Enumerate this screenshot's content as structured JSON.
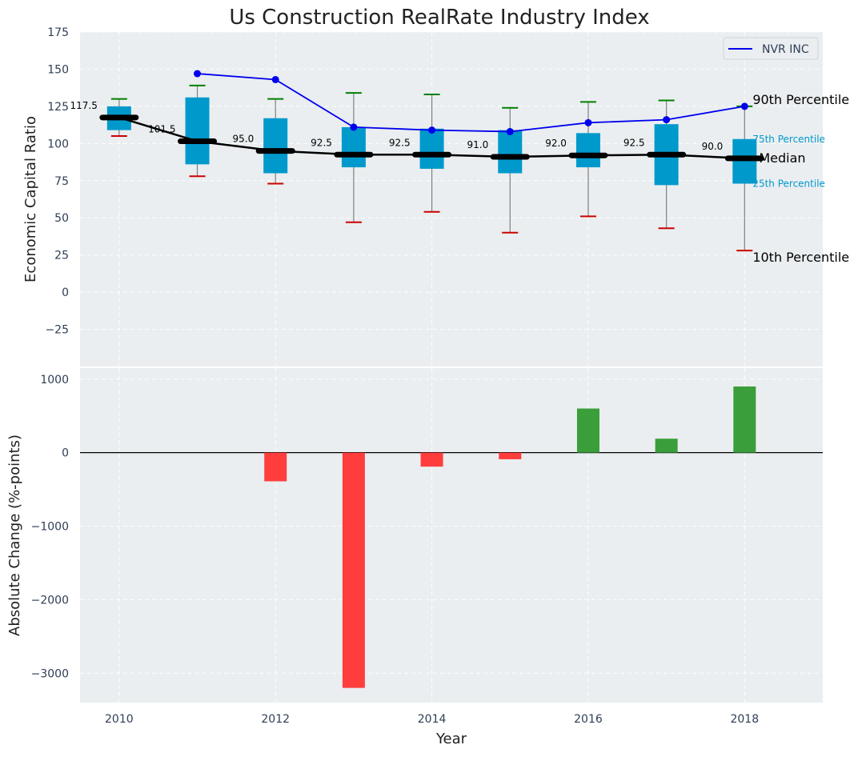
{
  "chart_data": [
    {
      "type": "box",
      "title": "Us Construction RealRate Industry Index",
      "ylabel": "Economic Capital Ratio",
      "ylim": [
        -50,
        175
      ],
      "yticks": [
        -25,
        0,
        25,
        50,
        75,
        100,
        125,
        150,
        175
      ],
      "xlim": [
        2009.5,
        2019.0
      ],
      "grid": true,
      "legend_placement": "top-right",
      "colors": {
        "box": "#0099cc",
        "median": "#000000",
        "whisker_line": "#808080",
        "cap_90": "#008000",
        "cap_10": "#cc0000",
        "company": "#0000ee",
        "percentile_label_small": "#0099cc",
        "background": "#eaeef0"
      },
      "boxes": [
        {
          "year": 2010,
          "p10": 105,
          "p25": 109,
          "median": 117.5,
          "p75": 125,
          "p90": 130,
          "label": "117.5"
        },
        {
          "year": 2011,
          "p10": 78,
          "p25": 86,
          "median": 101.5,
          "p75": 131,
          "p90": 139,
          "label": "101.5"
        },
        {
          "year": 2012,
          "p10": 73,
          "p25": 80,
          "median": 95.0,
          "p75": 117,
          "p90": 130,
          "label": "95.0"
        },
        {
          "year": 2013,
          "p10": 47,
          "p25": 84,
          "median": 92.5,
          "p75": 111,
          "p90": 134,
          "label": "92.5"
        },
        {
          "year": 2014,
          "p10": 54,
          "p25": 83,
          "median": 92.5,
          "p75": 110,
          "p90": 133,
          "label": "92.5"
        },
        {
          "year": 2015,
          "p10": 40,
          "p25": 80,
          "median": 91.0,
          "p75": 109,
          "p90": 124,
          "label": "91.0"
        },
        {
          "year": 2016,
          "p10": 51,
          "p25": 84,
          "median": 92.0,
          "p75": 107,
          "p90": 128,
          "label": "92.0"
        },
        {
          "year": 2017,
          "p10": 43,
          "p25": 72,
          "median": 92.5,
          "p75": 113,
          "p90": 129,
          "label": "92.5"
        },
        {
          "year": 2018,
          "p10": 28,
          "p25": 73,
          "median": 90.0,
          "p75": 103,
          "p90": 125,
          "label": "90.0"
        }
      ],
      "series": [
        {
          "name": "NVR INC",
          "x": [
            2011,
            2012,
            2013,
            2014,
            2015,
            2016,
            2017,
            2018
          ],
          "values": [
            147,
            143,
            111,
            109,
            108,
            114,
            116,
            125
          ]
        }
      ],
      "annotations": {
        "p90": "90th Percentile",
        "p75": "75th Percentile",
        "median": "Median",
        "p25": "25th Percentile",
        "p10": "10th Percentile"
      }
    },
    {
      "type": "bar",
      "ylabel": "Absolute Change (%-points)",
      "xlabel": "Year",
      "ylim": [
        -3400,
        1150
      ],
      "yticks": [
        -3000,
        -2000,
        -1000,
        0,
        1000
      ],
      "xticks": [
        2010,
        2012,
        2014,
        2016,
        2018
      ],
      "colors": {
        "positive": "#3a9e3a",
        "negative": "#ff3d3d"
      },
      "x": [
        2012,
        2013,
        2014,
        2015,
        2016,
        2017,
        2018
      ],
      "values": [
        -390,
        -3200,
        -190,
        -90,
        600,
        190,
        900
      ]
    }
  ]
}
